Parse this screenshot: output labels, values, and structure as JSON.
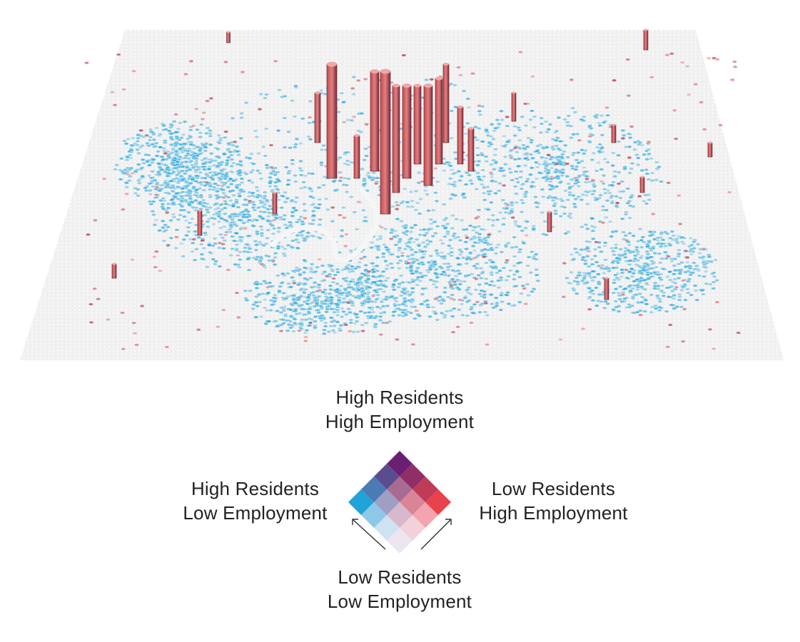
{
  "map": {
    "type": "3d-hexbin-extrusion",
    "plane_color": "#f4f4f4",
    "colors": {
      "residents": "#1fa3d8",
      "employment": "#e8424a",
      "both": "#6b1f73",
      "neither": "#f2eef5"
    }
  },
  "legend": {
    "top": {
      "line1": "High Residents",
      "line2": "High Employment"
    },
    "left": {
      "line1": "High Residents",
      "line2": "Low Employment"
    },
    "right": {
      "line1": "Low Residents",
      "line2": "High Employment"
    },
    "bottom": {
      "line1": "Low Residents",
      "line2": "Low Employment"
    },
    "grid": [
      [
        "#ede6f0",
        "#f2d1d8",
        "#f3a4ae",
        "#e8424a"
      ],
      [
        "#cfe2f1",
        "#d8b8cc",
        "#d98597",
        "#bf3b57"
      ],
      [
        "#8ec8e8",
        "#9f9ec3",
        "#a86c92",
        "#8f2f66"
      ],
      [
        "#1fa3d8",
        "#4b7ab4",
        "#5b4c8f",
        "#6b1f73"
      ]
    ]
  }
}
